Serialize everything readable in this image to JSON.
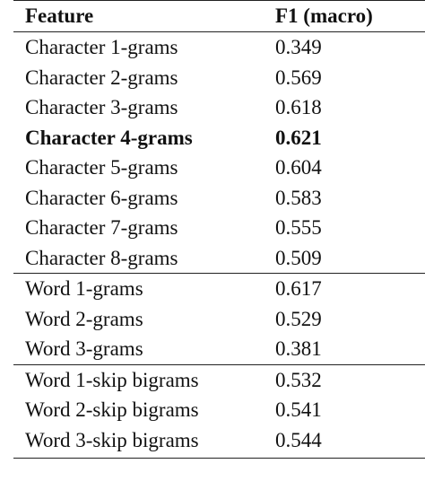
{
  "table": {
    "headers": {
      "feature": "Feature",
      "f1": "F1 (macro)"
    },
    "groups": [
      {
        "rows": [
          {
            "feature": "Character 1-grams",
            "f1": "0.349",
            "bold": false
          },
          {
            "feature": "Character 2-grams",
            "f1": "0.569",
            "bold": false
          },
          {
            "feature": "Character 3-grams",
            "f1": "0.618",
            "bold": false
          },
          {
            "feature": "Character 4-grams",
            "f1": "0.621",
            "bold": true
          },
          {
            "feature": "Character 5-grams",
            "f1": "0.604",
            "bold": false
          },
          {
            "feature": "Character 6-grams",
            "f1": "0.583",
            "bold": false
          },
          {
            "feature": "Character 7-grams",
            "f1": "0.555",
            "bold": false
          },
          {
            "feature": "Character 8-grams",
            "f1": "0.509",
            "bold": false
          }
        ]
      },
      {
        "rows": [
          {
            "feature": "Word 1-grams",
            "f1": "0.617",
            "bold": false
          },
          {
            "feature": "Word 2-grams",
            "f1": "0.529",
            "bold": false
          },
          {
            "feature": "Word 3-grams",
            "f1": "0.381",
            "bold": false
          }
        ]
      },
      {
        "rows": [
          {
            "feature": "Word 1-skip bigrams",
            "f1": "0.532",
            "bold": false
          },
          {
            "feature": "Word 2-skip bigrams",
            "f1": "0.541",
            "bold": false
          },
          {
            "feature": "Word 3-skip bigrams",
            "f1": "0.544",
            "bold": false
          }
        ]
      }
    ]
  }
}
